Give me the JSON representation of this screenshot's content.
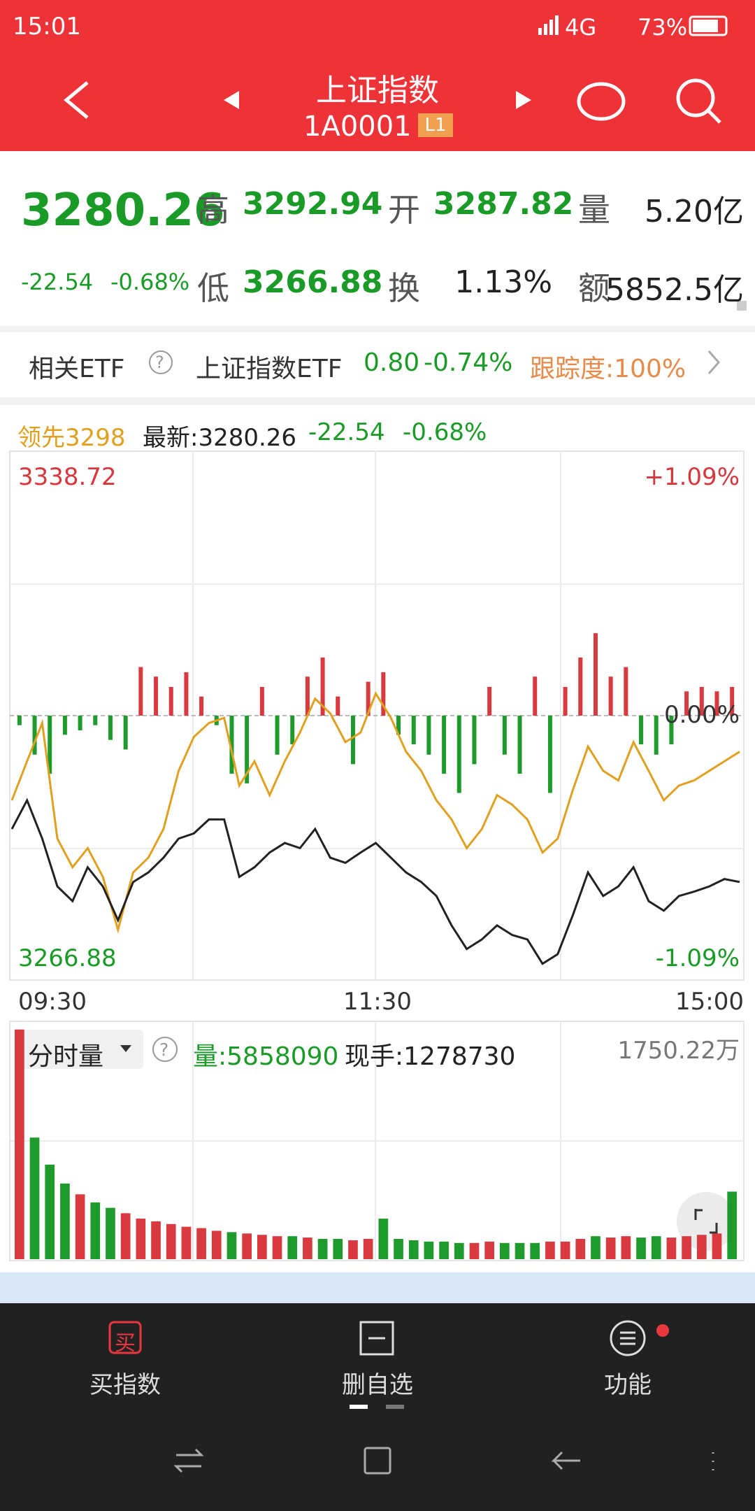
{
  "status_bar": {
    "time": "15:01",
    "network": "4G",
    "battery": "73%"
  },
  "header": {
    "title": "上证指数",
    "code": "1A0001",
    "badge": "L1"
  },
  "quote": {
    "price": "3280.26",
    "change": "-22.54",
    "change_pct": "-0.68%",
    "high_label": "高",
    "high": "3292.94",
    "open_label": "开",
    "open": "3287.82",
    "volume_label": "量",
    "volume": "5.20亿",
    "low_label": "低",
    "low": "3266.88",
    "turnover_label": "换",
    "turnover": "1.13%",
    "amount_label": "额",
    "amount": "5852.5亿"
  },
  "etf": {
    "label": "相关ETF",
    "help": "?",
    "name": "上证指数ETF",
    "price": "0.80",
    "change_pct": "-0.74%",
    "tracking": "跟踪度:100%"
  },
  "chart_data": [
    {
      "type": "line",
      "legend_lead": "领先3298",
      "legend_latest": "最新:3280.26",
      "legend_change": "-22.54",
      "legend_change_pct": "-0.68%",
      "xtick_labels": [
        "09:30",
        "11:30",
        "15:00"
      ],
      "ylim": [
        3266.88,
        3338.72
      ],
      "pct_top": "+1.09%",
      "pct_mid": "0.00%",
      "pct_bottom": "-1.09%",
      "series": [
        {
          "color": "#222222",
          "values": [
            3287.4,
            3291.3,
            3286.1,
            3279.6,
            3277.6,
            3282.2,
            3279.6,
            3275.0,
            3280.2,
            3281.5,
            3283.5,
            3286.1,
            3286.8,
            3288.7,
            3288.7,
            3280.9,
            3282.2,
            3284.2,
            3285.5,
            3284.8,
            3287.4,
            3283.5,
            3282.8,
            3284.2,
            3285.5,
            3283.5,
            3281.5,
            3280.2,
            3278.3,
            3274.3,
            3271.1,
            3272.4,
            3274.3,
            3273.0,
            3272.4,
            3269.1,
            3270.4,
            3275.7,
            3281.5,
            3278.3,
            3279.6,
            3282.2,
            3277.6,
            3276.3,
            3278.3,
            3278.9,
            3279.6,
            3280.6,
            3280.2
          ]
        },
        {
          "color": "#e0a020",
          "values": [
            3291.3,
            3296.6,
            3301.8,
            3286.1,
            3282.2,
            3284.8,
            3280.9,
            3273.7,
            3281.5,
            3283.5,
            3287.4,
            3295.3,
            3299.9,
            3301.8,
            3302.5,
            3293.3,
            3296.6,
            3292.0,
            3296.6,
            3300.5,
            3305.1,
            3303.1,
            3299.2,
            3300.5,
            3305.8,
            3302.5,
            3297.9,
            3295.3,
            3291.3,
            3288.7,
            3284.8,
            3287.4,
            3292.0,
            3290.7,
            3288.7,
            3284.2,
            3286.1,
            3292.7,
            3298.6,
            3295.3,
            3294.0,
            3299.2,
            3295.3,
            3291.3,
            3293.3,
            3294.0,
            3295.3,
            3296.6,
            3297.9
          ]
        }
      ],
      "ratio_bars": {
        "up_color": "#d83a3f",
        "down_color": "#1f9a2c",
        "values": [
          -1.3,
          -5.3,
          -7.9,
          -2.6,
          -2.0,
          -1.3,
          -3.3,
          -4.6,
          6.6,
          5.3,
          3.9,
          5.9,
          2.6,
          -1.3,
          -7.9,
          -9.2,
          3.9,
          -5.3,
          -3.9,
          5.3,
          7.9,
          2.6,
          -6.6,
          4.6,
          5.9,
          -2.6,
          -3.9,
          -5.3,
          -7.9,
          -10.5,
          -6.6,
          3.9,
          -5.3,
          -7.9,
          5.3,
          -10.5,
          3.9,
          7.9,
          11.2,
          5.3,
          6.6,
          -3.9,
          -5.3,
          -3.9,
          3.3,
          3.9,
          3.3,
          3.9
        ]
      }
    },
    {
      "type": "bar",
      "title": "分时量",
      "help": "?",
      "volume_label": "量:5858090",
      "hand_label": "现手:1278730",
      "ylim": [
        0,
        1750.22
      ],
      "ymax_label": "1750.22万",
      "up_color": "#d83a3f",
      "down_color": "#1f9a2c",
      "values": [
        1700,
        900,
        700,
        560,
        480,
        420,
        380,
        340,
        300,
        280,
        260,
        240,
        230,
        210,
        200,
        190,
        180,
        170,
        170,
        160,
        150,
        150,
        140,
        150,
        300,
        150,
        140,
        130,
        130,
        120,
        120,
        130,
        120,
        120,
        120,
        130,
        130,
        150,
        170,
        160,
        170,
        160,
        170,
        160,
        170,
        180,
        190,
        500
      ]
    }
  ],
  "nav": {
    "buy_icon": "买",
    "buy": "买指数",
    "remove": "删自选",
    "function": "功能"
  }
}
